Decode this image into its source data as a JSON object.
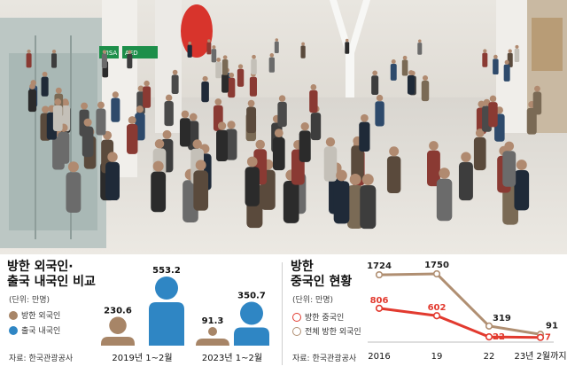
{
  "colors": {
    "foreign": "#a78567",
    "korean": "#2f86c4",
    "chinese": "#e23a2f",
    "total": "#b08f72"
  },
  "photo": {
    "sign_aed": "AED",
    "sign_visa": "VISA"
  },
  "left": {
    "title_line1": "방한 외국인·",
    "title_line2": "출국 내국인 비교",
    "unit": "(단위: 만명)",
    "legend_foreign": "방한 외국인",
    "legend_korean": "출국 내국인",
    "source": "자료: 한국관광공사"
  },
  "right": {
    "title_line1": "방한",
    "title_line2": "중국인 현황",
    "unit": "(단위: 만명)",
    "legend_chinese": "방한 중국인",
    "legend_total": "전체 방한 외국인",
    "source": "자료: 한국관광공사"
  },
  "chart_data": [
    {
      "type": "bar",
      "categories": [
        "2019년 1~2월",
        "2023년 1~2월"
      ],
      "series": [
        {
          "name": "방한 외국인",
          "values": [
            230.6,
            91.3
          ]
        },
        {
          "name": "출국 내국인",
          "values": [
            553.2,
            350.7
          ]
        }
      ],
      "labels": [
        "230.6",
        "553.2",
        "91.3",
        "350.7"
      ]
    },
    {
      "type": "line",
      "x": [
        "2016",
        "19",
        "22",
        "23년 2월까지"
      ],
      "series": [
        {
          "name": "방한 중국인",
          "values": [
            806,
            602,
            22,
            7
          ]
        },
        {
          "name": "전체 방한 외국인",
          "values": [
            1724,
            1750,
            319,
            91
          ]
        }
      ]
    }
  ]
}
